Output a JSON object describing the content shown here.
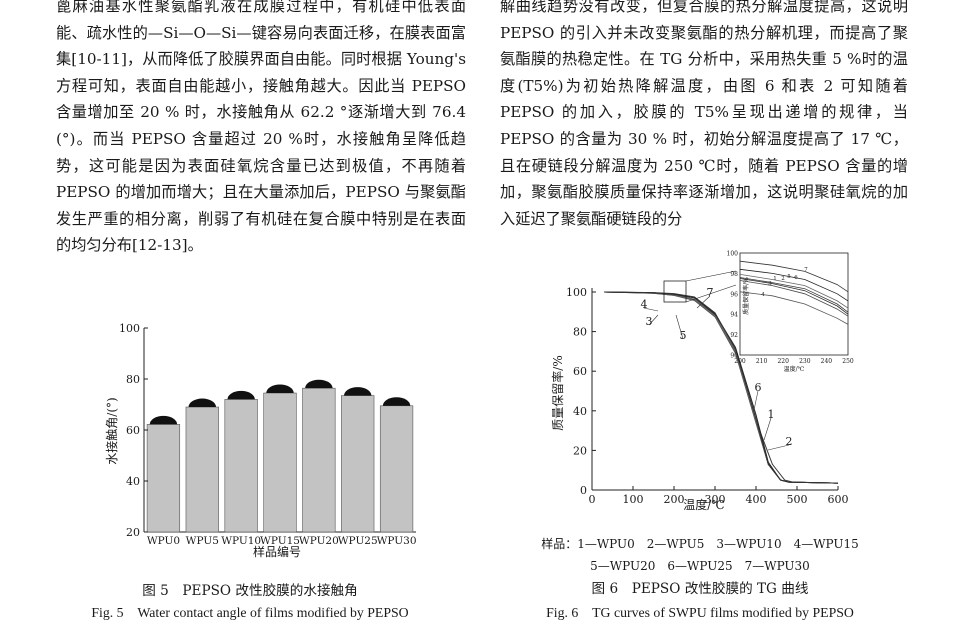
{
  "left_text": "蓖麻油基水性聚氨酯乳液在成膜过程中，有机硅中低表面能、疏水性的—Si—O—Si—键容易向表面迁移，在膜表面富集[10-11]，从而降低了胶膜界面自由能。同时根据 Young's 方程可知，表面自由能越小，接触角越大。因此当 PEPSO 含量增加至 20 % 时，水接触角从 62.2 °逐渐增大到 76.4 (°)。而当 PEPSO 含量超过 20 %时，水接触角呈降低趋势，这可能是因为表面硅氧烷含量已达到极值，不再随着 PEPSO 的增加而增大；且在大量添加后，PEPSO 与聚氨酯发生严重的相分离，削弱了有机硅在复合膜中特别是在表面的均匀分布[12-13]。",
  "right_text": "解曲线趋势没有改变，但复合膜的热分解温度提高，这说明 PEPSO 的引入并未改变聚氨酯的热分解机理，而提高了聚氨酯膜的热稳定性。在 TG 分析中，采用热失重 5 %时的温度(T5%)为初始热降解温度，由图 6 和表 2 可知随着 PEPSO 的加入，胶膜的 T5%呈现出递增的规律，当 PEPSO 的含量为 30 % 时，初始分解温度提高了 17 ℃，且在硬链段分解温度为 250 ℃时，随着 PEPSO 含量的增加，聚氨酯胶膜质量保持率逐渐增加，这说明聚硅氧烷的加入延迟了聚氨酯硬链段的分",
  "fig5": {
    "caption_cn": "图 5　PEPSO 改性胶膜的水接触角",
    "caption_en": "Fig. 5　Water contact angle of films modified by PEPSO"
  },
  "fig6": {
    "caption_cn": "图 6　PEPSO 改性胶膜的 TG 曲线",
    "caption_en": "Fig. 6　TG curves of SWPU films modified by PEPSO",
    "legend_line1": "样品：1—WPU0　2—WPU5　3—WPU10　4—WPU15",
    "legend_line2": "5—WPU20　6—WPU25　7—WPU30"
  },
  "chart_data": [
    {
      "type": "bar",
      "xlabel": "样品编号",
      "ylabel": "水接触角/(°)",
      "categories": [
        "WPU0",
        "WPU5",
        "WPU10",
        "WPU15",
        "WPU20",
        "WPU25",
        "WPU30"
      ],
      "values": [
        62.2,
        69,
        72,
        74.5,
        76.4,
        73.5,
        69.5
      ],
      "ylim": [
        20,
        100
      ],
      "yticks": [
        20,
        40,
        60,
        80,
        100
      ],
      "bar_color": "#c3c3c3",
      "drop_color": "#111111"
    },
    {
      "type": "line",
      "xlabel": "温度/℃",
      "ylabel": "质量保留率/%",
      "xlim": [
        0,
        600
      ],
      "ylim": [
        0,
        100
      ],
      "xticks": [
        0,
        100,
        200,
        300,
        400,
        500,
        600
      ],
      "yticks": [
        0,
        20,
        40,
        60,
        80,
        100
      ],
      "series": [
        {
          "name": "1",
          "x": [
            30,
            150,
            200,
            250,
            300,
            350,
            400,
            430,
            460,
            480,
            600
          ],
          "y": [
            100,
            99.5,
            98.5,
            96,
            88,
            70,
            35,
            13,
            5,
            4,
            3.5
          ]
        },
        {
          "name": "2",
          "x": [
            30,
            150,
            200,
            250,
            300,
            350,
            400,
            440,
            470,
            490,
            600
          ],
          "y": [
            100,
            99.6,
            98.7,
            96.3,
            88.5,
            70,
            35,
            13,
            5,
            4,
            3.5
          ]
        },
        {
          "name": "3",
          "x": [
            30,
            150,
            200,
            250,
            300,
            350,
            400,
            430,
            460,
            480,
            600
          ],
          "y": [
            100,
            99.4,
            98.4,
            95.8,
            88,
            69.5,
            34,
            13,
            5,
            4,
            3.5
          ]
        },
        {
          "name": "4",
          "x": [
            30,
            150,
            200,
            250,
            300,
            350,
            400,
            430,
            460,
            480,
            600
          ],
          "y": [
            100,
            99.4,
            98.3,
            95.7,
            87.5,
            69,
            34,
            13,
            5,
            4,
            3.5
          ]
        },
        {
          "name": "5",
          "x": [
            30,
            150,
            200,
            250,
            300,
            350,
            400,
            430,
            460,
            480,
            600
          ],
          "y": [
            100,
            99.5,
            98.6,
            96.2,
            88,
            70,
            35,
            13,
            5,
            4,
            3.5
          ]
        },
        {
          "name": "6",
          "x": [
            30,
            150,
            200,
            250,
            300,
            350,
            400,
            430,
            460,
            480,
            600
          ],
          "y": [
            100,
            99.6,
            98.9,
            97,
            89,
            72,
            38,
            14,
            5,
            4,
            3.5
          ]
        },
        {
          "name": "7",
          "x": [
            30,
            150,
            200,
            250,
            300,
            350,
            400,
            430,
            460,
            480,
            600
          ],
          "y": [
            100,
            99.7,
            99.2,
            97.5,
            89.5,
            71,
            36,
            13,
            5,
            4,
            3.5
          ]
        }
      ],
      "inset": {
        "xlabel": "温度/℃",
        "ylabel": "质量保留率/%",
        "xlim": [
          200,
          250
        ],
        "ylim": [
          90,
          100
        ],
        "xticks": [
          200,
          210,
          220,
          230,
          240,
          250
        ],
        "yticks": [
          90,
          92,
          94,
          96,
          98,
          100
        ]
      }
    }
  ]
}
